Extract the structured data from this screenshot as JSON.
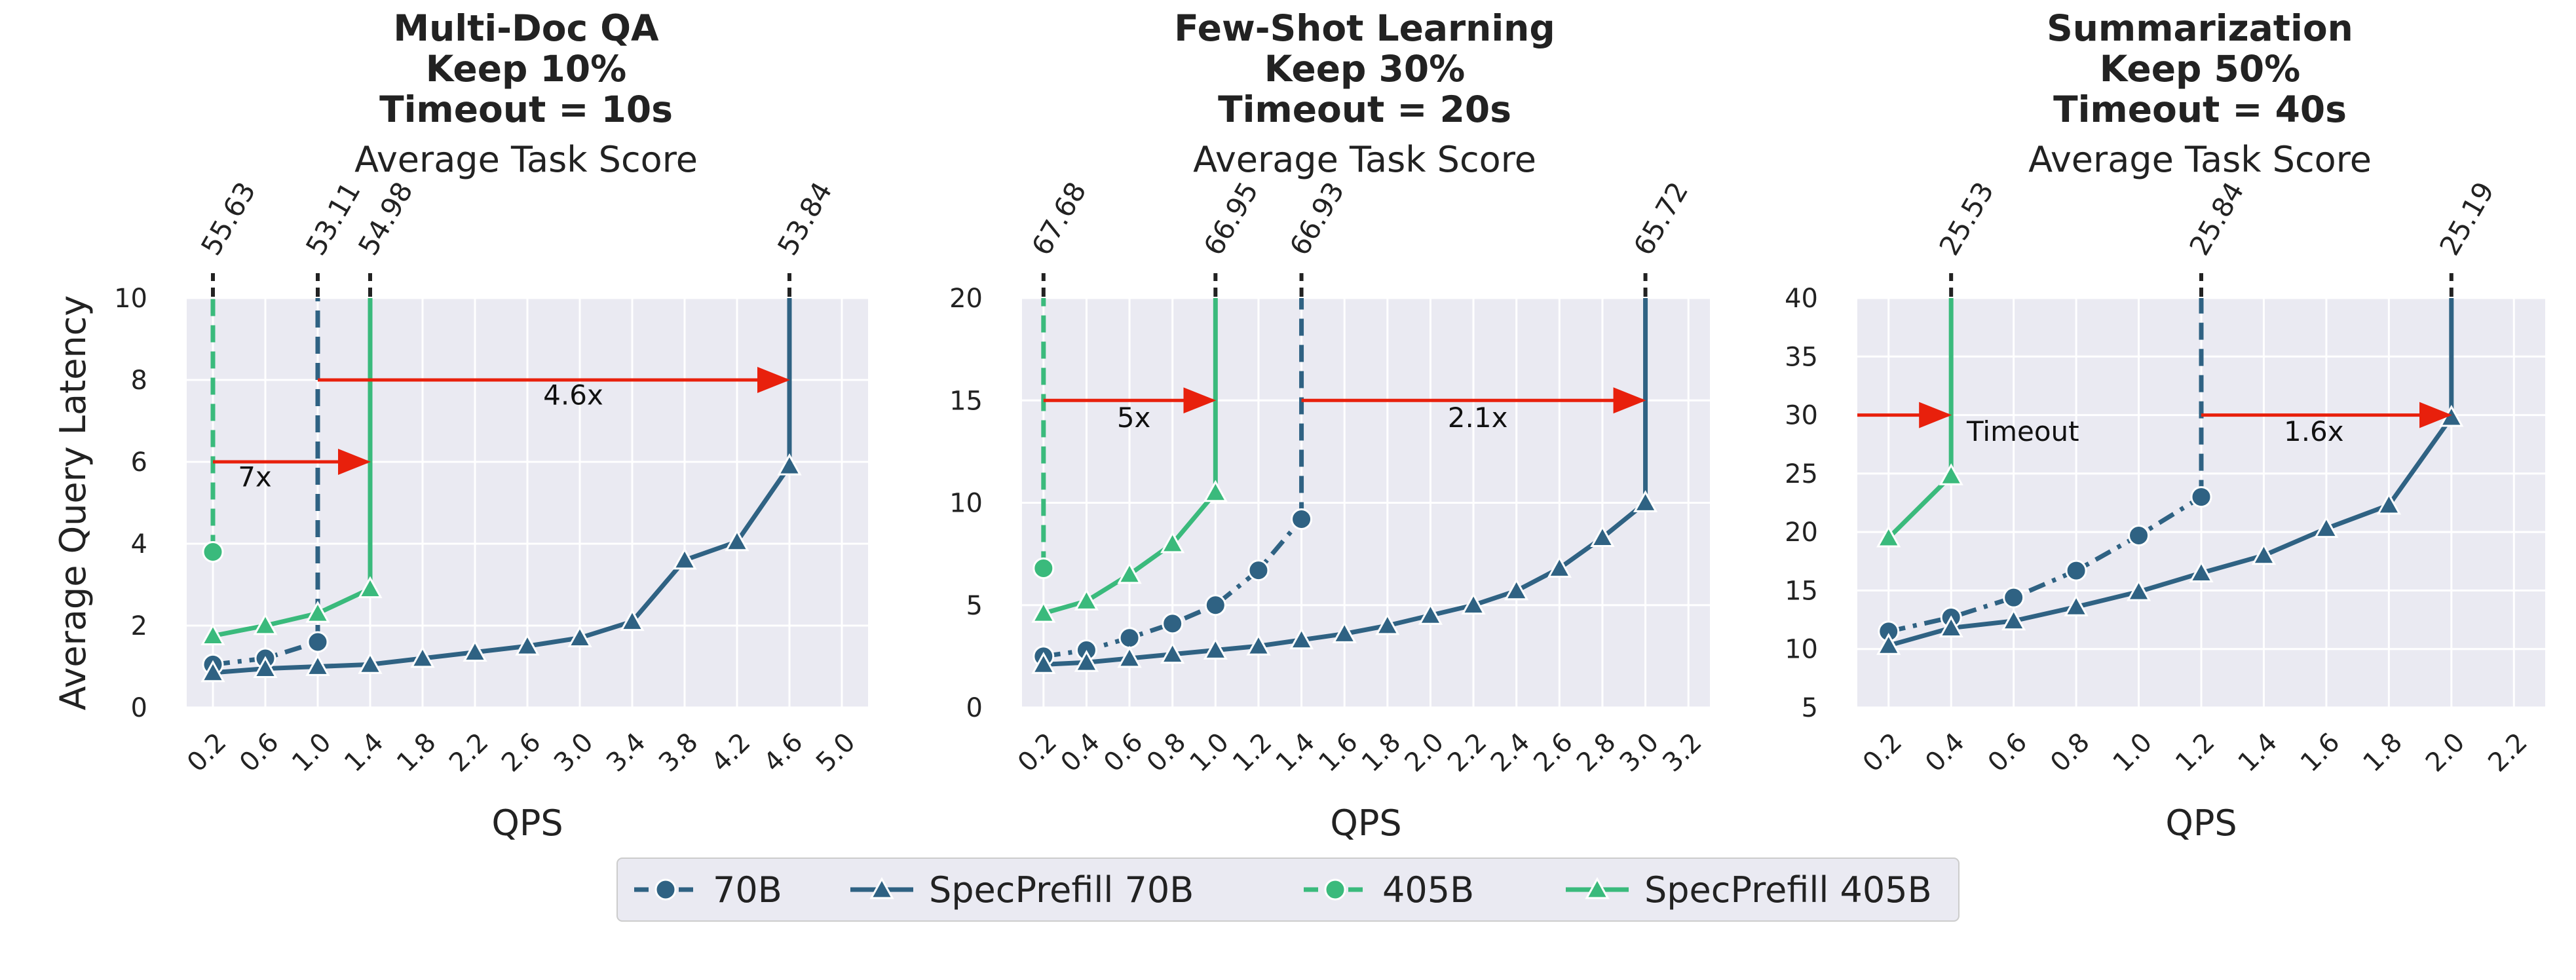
{
  "colors": {
    "navy": "#2f6283",
    "green": "#3aba7c",
    "arrow": "#e8200c",
    "plot_bg": "#eaeaf2",
    "grid": "#ffffff"
  },
  "legend": {
    "items": [
      {
        "label": "70B",
        "color": "#2f6283",
        "dash": true,
        "marker": "circle"
      },
      {
        "label": "SpecPrefill 70B",
        "color": "#2f6283",
        "dash": false,
        "marker": "triangle"
      },
      {
        "label": "405B",
        "color": "#3aba7c",
        "dash": true,
        "marker": "circle"
      },
      {
        "label": "SpecPrefill 405B",
        "color": "#3aba7c",
        "dash": false,
        "marker": "triangle"
      }
    ]
  },
  "chart_data": [
    {
      "type": "line",
      "title": [
        "Multi-Doc QA",
        "Keep 10%",
        "Timeout = 10s"
      ],
      "subtitle": "Average Task Score",
      "xlabel": "QPS",
      "ylabel": "Average Query Latency",
      "xlim": [
        0.0,
        5.2
      ],
      "ylim": [
        0,
        10
      ],
      "xticks": [
        0.2,
        0.6,
        1.0,
        1.4,
        1.8,
        2.2,
        2.6,
        3.0,
        3.4,
        3.8,
        4.2,
        4.6,
        5.0
      ],
      "xtick_labels": [
        "0.2",
        "0.6",
        "1.0",
        "1.4",
        "1.8",
        "2.2",
        "2.6",
        "3.0",
        "3.4",
        "3.8",
        "4.2",
        "4.6",
        "5.0"
      ],
      "yticks": [
        0,
        2,
        4,
        6,
        8,
        10
      ],
      "ytick_labels": [
        "0",
        "2",
        "4",
        "6",
        "8",
        "10"
      ],
      "series": [
        {
          "name": "70B",
          "color": "navy",
          "dash": true,
          "marker": "circle",
          "x": [
            0.2,
            0.6,
            1.0
          ],
          "y": [
            1.05,
            1.2,
            1.6
          ]
        },
        {
          "name": "SpecPrefill 70B",
          "color": "navy",
          "dash": false,
          "marker": "triangle",
          "x": [
            0.2,
            0.6,
            1.0,
            1.4,
            1.8,
            2.2,
            2.6,
            3.0,
            3.4,
            3.8,
            4.2,
            4.6
          ],
          "y": [
            0.85,
            0.95,
            1.0,
            1.05,
            1.2,
            1.35,
            1.5,
            1.7,
            2.1,
            3.6,
            4.05,
            5.9
          ]
        },
        {
          "name": "405B",
          "color": "green",
          "dash": true,
          "marker": "circle",
          "x": [
            0.2
          ],
          "y": [
            3.8
          ]
        },
        {
          "name": "SpecPrefill 405B",
          "color": "green",
          "dash": false,
          "marker": "triangle",
          "x": [
            0.2,
            0.6,
            1.0,
            1.4
          ],
          "y": [
            1.75,
            2.0,
            2.3,
            2.9
          ]
        }
      ],
      "vlines": [
        {
          "x": 0.2,
          "from": 3.8,
          "color": "green",
          "dash": true,
          "score": "55.63"
        },
        {
          "x": 1.0,
          "from": 1.6,
          "color": "navy",
          "dash": true,
          "score": "53.11"
        },
        {
          "x": 1.4,
          "from": 2.9,
          "color": "green",
          "dash": false,
          "score": "54.98"
        },
        {
          "x": 4.6,
          "from": 5.9,
          "color": "navy",
          "dash": false,
          "score": "53.84"
        }
      ],
      "arrows": [
        {
          "x1": 0.2,
          "x2": 1.4,
          "y": 6,
          "label": "7x",
          "lx": 0.52,
          "ly": 5.4
        },
        {
          "x1": 1.0,
          "x2": 4.6,
          "y": 8,
          "label": "4.6x",
          "lx": 2.95,
          "ly": 7.4
        }
      ]
    },
    {
      "type": "line",
      "title": [
        "Few-Shot Learning",
        "Keep 30%",
        "Timeout = 20s"
      ],
      "subtitle": "Average Task Score",
      "xlabel": "QPS",
      "ylabel": "",
      "xlim": [
        0.1,
        3.3
      ],
      "ylim": [
        0,
        20
      ],
      "xticks": [
        0.2,
        0.4,
        0.6,
        0.8,
        1.0,
        1.2,
        1.4,
        1.6,
        1.8,
        2.0,
        2.2,
        2.4,
        2.6,
        2.8,
        3.0,
        3.2
      ],
      "xtick_labels": [
        "0.2",
        "0.4",
        "0.6",
        "0.8",
        "1.0",
        "1.2",
        "1.4",
        "1.6",
        "1.8",
        "2.0",
        "2.2",
        "2.4",
        "2.6",
        "2.8",
        "3.0",
        "3.2"
      ],
      "yticks": [
        0,
        5,
        10,
        15,
        20
      ],
      "ytick_labels": [
        "0",
        "5",
        "10",
        "15",
        "20"
      ],
      "series": [
        {
          "name": "70B",
          "color": "navy",
          "dash": true,
          "marker": "circle",
          "x": [
            0.2,
            0.4,
            0.6,
            0.8,
            1.0,
            1.2,
            1.4
          ],
          "y": [
            2.5,
            2.8,
            3.4,
            4.1,
            5.0,
            6.7,
            9.2
          ]
        },
        {
          "name": "SpecPrefill 70B",
          "color": "navy",
          "dash": false,
          "marker": "triangle",
          "x": [
            0.2,
            0.4,
            0.6,
            0.8,
            1.0,
            1.2,
            1.4,
            1.6,
            1.8,
            2.0,
            2.2,
            2.4,
            2.6,
            2.8,
            3.0
          ],
          "y": [
            2.1,
            2.2,
            2.4,
            2.6,
            2.8,
            3.0,
            3.3,
            3.6,
            4.0,
            4.5,
            5.0,
            5.7,
            6.8,
            8.3,
            10.0
          ]
        },
        {
          "name": "405B",
          "color": "green",
          "dash": true,
          "marker": "circle",
          "x": [
            0.2
          ],
          "y": [
            6.8
          ]
        },
        {
          "name": "SpecPrefill 405B",
          "color": "green",
          "dash": false,
          "marker": "triangle",
          "x": [
            0.2,
            0.4,
            0.6,
            0.8,
            1.0
          ],
          "y": [
            4.6,
            5.2,
            6.5,
            8.0,
            10.5
          ]
        }
      ],
      "vlines": [
        {
          "x": 0.2,
          "from": 6.8,
          "color": "green",
          "dash": true,
          "score": "67.68"
        },
        {
          "x": 1.0,
          "from": 10.5,
          "color": "green",
          "dash": false,
          "score": "66.95"
        },
        {
          "x": 1.4,
          "from": 9.2,
          "color": "navy",
          "dash": true,
          "score": "66.93"
        },
        {
          "x": 3.0,
          "from": 10.0,
          "color": "navy",
          "dash": false,
          "score": "65.72"
        }
      ],
      "arrows": [
        {
          "x1": 0.2,
          "x2": 1.0,
          "y": 15,
          "label": "5x",
          "lx": 0.62,
          "ly": 13.7
        },
        {
          "x1": 1.4,
          "x2": 3.0,
          "y": 15,
          "label": "2.1x",
          "lx": 2.22,
          "ly": 13.7
        }
      ]
    },
    {
      "type": "line",
      "title": [
        "Summarization",
        "Keep 50%",
        "Timeout = 40s"
      ],
      "subtitle": "Average Task Score",
      "xlabel": "QPS",
      "ylabel": "",
      "xlim": [
        0.1,
        2.3
      ],
      "ylim": [
        5,
        40
      ],
      "xticks": [
        0.2,
        0.4,
        0.6,
        0.8,
        1.0,
        1.2,
        1.4,
        1.6,
        1.8,
        2.0,
        2.2
      ],
      "xtick_labels": [
        "0.2",
        "0.4",
        "0.6",
        "0.8",
        "1.0",
        "1.2",
        "1.4",
        "1.6",
        "1.8",
        "2.0",
        "2.2"
      ],
      "yticks": [
        5,
        10,
        15,
        20,
        25,
        30,
        35,
        40
      ],
      "ytick_labels": [
        "5",
        "10",
        "15",
        "20",
        "25",
        "30",
        "35",
        "40"
      ],
      "series": [
        {
          "name": "70B",
          "color": "navy",
          "dash": true,
          "marker": "circle",
          "x": [
            0.2,
            0.4,
            0.6,
            0.8,
            1.0,
            1.2
          ],
          "y": [
            11.5,
            12.7,
            14.4,
            16.7,
            19.7,
            23.0
          ]
        },
        {
          "name": "SpecPrefill 70B",
          "color": "navy",
          "dash": false,
          "marker": "triangle",
          "x": [
            0.2,
            0.4,
            0.6,
            0.8,
            1.0,
            1.2,
            1.4,
            1.6,
            1.8,
            2.0
          ],
          "y": [
            10.3,
            11.8,
            12.4,
            13.6,
            14.9,
            16.5,
            18.0,
            20.3,
            22.3,
            29.8
          ]
        },
        {
          "name": "405B",
          "color": "green",
          "dash": true,
          "marker": "circle",
          "x": [],
          "y": []
        },
        {
          "name": "SpecPrefill 405B",
          "color": "green",
          "dash": false,
          "marker": "triangle",
          "x": [
            0.2,
            0.4
          ],
          "y": [
            19.5,
            24.8
          ]
        }
      ],
      "vlines": [
        {
          "x": 0.4,
          "from": 24.8,
          "color": "green",
          "dash": false,
          "score": "25.53"
        },
        {
          "x": 1.2,
          "from": 23.0,
          "color": "navy",
          "dash": true,
          "score": "25.84"
        },
        {
          "x": 2.0,
          "from": 29.8,
          "color": "navy",
          "dash": false,
          "score": "25.19"
        }
      ],
      "arrows": [
        {
          "x1": 0.1,
          "x2": 0.4,
          "y": 30,
          "label": "",
          "lx": 0,
          "ly": 0
        },
        {
          "x1": 1.2,
          "x2": 2.0,
          "y": 30,
          "label": "1.6x",
          "lx": 1.56,
          "ly": 27.8
        }
      ],
      "texts": [
        {
          "x": 0.45,
          "y": 27.8,
          "text": "Timeout"
        }
      ]
    }
  ]
}
